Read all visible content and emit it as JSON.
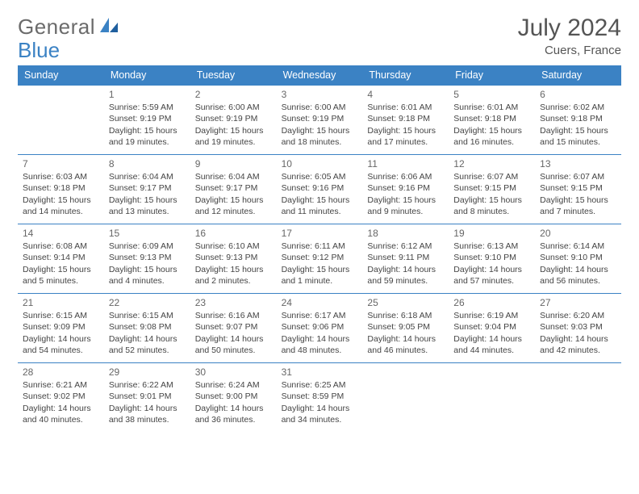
{
  "logo": {
    "text1": "General",
    "text2": "Blue"
  },
  "title": "July 2024",
  "location": "Cuers, France",
  "colors": {
    "headerBg": "#3b82c4",
    "headerText": "#ffffff",
    "borderTop": "#3b82c4",
    "bodyText": "#444444",
    "titleText": "#555555",
    "logoGray": "#6b6b6b",
    "logoBlue": "#3b82c4",
    "background": "#ffffff"
  },
  "dayNames": [
    "Sunday",
    "Monday",
    "Tuesday",
    "Wednesday",
    "Thursday",
    "Friday",
    "Saturday"
  ],
  "startOffset": 1,
  "days": [
    {
      "n": 1,
      "sr": "5:59 AM",
      "ss": "9:19 PM",
      "dl": "15 hours and 19 minutes."
    },
    {
      "n": 2,
      "sr": "6:00 AM",
      "ss": "9:19 PM",
      "dl": "15 hours and 19 minutes."
    },
    {
      "n": 3,
      "sr": "6:00 AM",
      "ss": "9:19 PM",
      "dl": "15 hours and 18 minutes."
    },
    {
      "n": 4,
      "sr": "6:01 AM",
      "ss": "9:18 PM",
      "dl": "15 hours and 17 minutes."
    },
    {
      "n": 5,
      "sr": "6:01 AM",
      "ss": "9:18 PM",
      "dl": "15 hours and 16 minutes."
    },
    {
      "n": 6,
      "sr": "6:02 AM",
      "ss": "9:18 PM",
      "dl": "15 hours and 15 minutes."
    },
    {
      "n": 7,
      "sr": "6:03 AM",
      "ss": "9:18 PM",
      "dl": "15 hours and 14 minutes."
    },
    {
      "n": 8,
      "sr": "6:04 AM",
      "ss": "9:17 PM",
      "dl": "15 hours and 13 minutes."
    },
    {
      "n": 9,
      "sr": "6:04 AM",
      "ss": "9:17 PM",
      "dl": "15 hours and 12 minutes."
    },
    {
      "n": 10,
      "sr": "6:05 AM",
      "ss": "9:16 PM",
      "dl": "15 hours and 11 minutes."
    },
    {
      "n": 11,
      "sr": "6:06 AM",
      "ss": "9:16 PM",
      "dl": "15 hours and 9 minutes."
    },
    {
      "n": 12,
      "sr": "6:07 AM",
      "ss": "9:15 PM",
      "dl": "15 hours and 8 minutes."
    },
    {
      "n": 13,
      "sr": "6:07 AM",
      "ss": "9:15 PM",
      "dl": "15 hours and 7 minutes."
    },
    {
      "n": 14,
      "sr": "6:08 AM",
      "ss": "9:14 PM",
      "dl": "15 hours and 5 minutes."
    },
    {
      "n": 15,
      "sr": "6:09 AM",
      "ss": "9:13 PM",
      "dl": "15 hours and 4 minutes."
    },
    {
      "n": 16,
      "sr": "6:10 AM",
      "ss": "9:13 PM",
      "dl": "15 hours and 2 minutes."
    },
    {
      "n": 17,
      "sr": "6:11 AM",
      "ss": "9:12 PM",
      "dl": "15 hours and 1 minute."
    },
    {
      "n": 18,
      "sr": "6:12 AM",
      "ss": "9:11 PM",
      "dl": "14 hours and 59 minutes."
    },
    {
      "n": 19,
      "sr": "6:13 AM",
      "ss": "9:10 PM",
      "dl": "14 hours and 57 minutes."
    },
    {
      "n": 20,
      "sr": "6:14 AM",
      "ss": "9:10 PM",
      "dl": "14 hours and 56 minutes."
    },
    {
      "n": 21,
      "sr": "6:15 AM",
      "ss": "9:09 PM",
      "dl": "14 hours and 54 minutes."
    },
    {
      "n": 22,
      "sr": "6:15 AM",
      "ss": "9:08 PM",
      "dl": "14 hours and 52 minutes."
    },
    {
      "n": 23,
      "sr": "6:16 AM",
      "ss": "9:07 PM",
      "dl": "14 hours and 50 minutes."
    },
    {
      "n": 24,
      "sr": "6:17 AM",
      "ss": "9:06 PM",
      "dl": "14 hours and 48 minutes."
    },
    {
      "n": 25,
      "sr": "6:18 AM",
      "ss": "9:05 PM",
      "dl": "14 hours and 46 minutes."
    },
    {
      "n": 26,
      "sr": "6:19 AM",
      "ss": "9:04 PM",
      "dl": "14 hours and 44 minutes."
    },
    {
      "n": 27,
      "sr": "6:20 AM",
      "ss": "9:03 PM",
      "dl": "14 hours and 42 minutes."
    },
    {
      "n": 28,
      "sr": "6:21 AM",
      "ss": "9:02 PM",
      "dl": "14 hours and 40 minutes."
    },
    {
      "n": 29,
      "sr": "6:22 AM",
      "ss": "9:01 PM",
      "dl": "14 hours and 38 minutes."
    },
    {
      "n": 30,
      "sr": "6:24 AM",
      "ss": "9:00 PM",
      "dl": "14 hours and 36 minutes."
    },
    {
      "n": 31,
      "sr": "6:25 AM",
      "ss": "8:59 PM",
      "dl": "14 hours and 34 minutes."
    }
  ],
  "labels": {
    "sunrise": "Sunrise:",
    "sunset": "Sunset:",
    "daylight": "Daylight:"
  }
}
